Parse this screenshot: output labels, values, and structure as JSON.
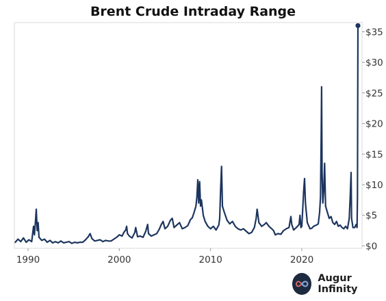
{
  "chart_data": {
    "type": "line",
    "title": "Brent Crude Intraday Range",
    "xlabel": "",
    "ylabel": "",
    "x_range": [
      1988.5,
      2026.6
    ],
    "ylim": [
      -0.4,
      36.5
    ],
    "x_ticks": [
      {
        "value": 1990,
        "label": "1990"
      },
      {
        "value": 2000,
        "label": "2000"
      },
      {
        "value": 2010,
        "label": "2010"
      },
      {
        "value": 2020,
        "label": "2020"
      }
    ],
    "y_ticks": [
      {
        "value": 0,
        "label": "$0"
      },
      {
        "value": 5,
        "label": "$5"
      },
      {
        "value": 10,
        "label": "$10"
      },
      {
        "value": 15,
        "label": "$15"
      },
      {
        "value": 20,
        "label": "$20"
      },
      {
        "value": 25,
        "label": "$25"
      },
      {
        "value": 30,
        "label": "$30"
      },
      {
        "value": 35,
        "label": "$35"
      }
    ],
    "grid": false,
    "y_axis_side": "right",
    "line_color": "#1c355e",
    "series": [
      {
        "name": "",
        "points": [
          [
            1988.6,
            0.6
          ],
          [
            1988.9,
            1.1
          ],
          [
            1989.2,
            0.7
          ],
          [
            1989.5,
            1.3
          ],
          [
            1989.8,
            0.6
          ],
          [
            1990.1,
            1.0
          ],
          [
            1990.4,
            0.7
          ],
          [
            1990.6,
            3.2
          ],
          [
            1990.7,
            1.8
          ],
          [
            1990.8,
            3.8
          ],
          [
            1990.9,
            6.0
          ],
          [
            1991.0,
            2.5
          ],
          [
            1991.1,
            3.8
          ],
          [
            1991.2,
            1.4
          ],
          [
            1991.5,
            0.9
          ],
          [
            1991.8,
            1.1
          ],
          [
            1992.1,
            0.6
          ],
          [
            1992.4,
            0.9
          ],
          [
            1992.7,
            0.5
          ],
          [
            1993.0,
            0.7
          ],
          [
            1993.3,
            0.5
          ],
          [
            1993.6,
            0.8
          ],
          [
            1993.9,
            0.5
          ],
          [
            1994.2,
            0.6
          ],
          [
            1994.5,
            0.7
          ],
          [
            1994.8,
            0.4
          ],
          [
            1995.1,
            0.6
          ],
          [
            1995.4,
            0.5
          ],
          [
            1995.7,
            0.6
          ],
          [
            1996.0,
            0.6
          ],
          [
            1996.3,
            1.0
          ],
          [
            1996.6,
            1.5
          ],
          [
            1996.8,
            2.0
          ],
          [
            1997.0,
            1.2
          ],
          [
            1997.3,
            0.8
          ],
          [
            1997.6,
            0.9
          ],
          [
            1997.9,
            1.0
          ],
          [
            1998.2,
            0.7
          ],
          [
            1998.5,
            0.9
          ],
          [
            1998.8,
            0.8
          ],
          [
            1999.1,
            0.8
          ],
          [
            1999.4,
            1.1
          ],
          [
            1999.7,
            1.4
          ],
          [
            2000.0,
            1.8
          ],
          [
            2000.3,
            1.6
          ],
          [
            2000.5,
            2.2
          ],
          [
            2000.7,
            2.6
          ],
          [
            2000.8,
            3.2
          ],
          [
            2000.9,
            2.0
          ],
          [
            2001.1,
            1.6
          ],
          [
            2001.4,
            1.3
          ],
          [
            2001.7,
            2.2
          ],
          [
            2001.8,
            3.0
          ],
          [
            2002.0,
            1.5
          ],
          [
            2002.3,
            1.6
          ],
          [
            2002.6,
            1.4
          ],
          [
            2002.9,
            2.4
          ],
          [
            2003.1,
            3.5
          ],
          [
            2003.2,
            2.0
          ],
          [
            2003.5,
            1.6
          ],
          [
            2003.8,
            1.8
          ],
          [
            2004.1,
            2.0
          ],
          [
            2004.4,
            2.8
          ],
          [
            2004.6,
            3.5
          ],
          [
            2004.8,
            4.0
          ],
          [
            2005.0,
            2.8
          ],
          [
            2005.3,
            3.2
          ],
          [
            2005.6,
            4.2
          ],
          [
            2005.8,
            4.5
          ],
          [
            2006.0,
            3.0
          ],
          [
            2006.3,
            3.4
          ],
          [
            2006.6,
            3.8
          ],
          [
            2006.9,
            2.8
          ],
          [
            2007.2,
            3.0
          ],
          [
            2007.5,
            3.3
          ],
          [
            2007.8,
            4.3
          ],
          [
            2008.0,
            4.6
          ],
          [
            2008.2,
            5.5
          ],
          [
            2008.4,
            6.5
          ],
          [
            2008.5,
            8.0
          ],
          [
            2008.6,
            10.8
          ],
          [
            2008.7,
            7.0
          ],
          [
            2008.8,
            10.5
          ],
          [
            2008.9,
            6.5
          ],
          [
            2009.0,
            7.5
          ],
          [
            2009.2,
            5.0
          ],
          [
            2009.4,
            4.0
          ],
          [
            2009.7,
            3.2
          ],
          [
            2010.0,
            2.8
          ],
          [
            2010.3,
            3.2
          ],
          [
            2010.6,
            2.6
          ],
          [
            2010.9,
            3.4
          ],
          [
            2011.0,
            4.5
          ],
          [
            2011.1,
            9.0
          ],
          [
            2011.2,
            13.0
          ],
          [
            2011.3,
            6.5
          ],
          [
            2011.5,
            5.5
          ],
          [
            2011.8,
            4.2
          ],
          [
            2012.1,
            3.6
          ],
          [
            2012.4,
            4.0
          ],
          [
            2012.7,
            3.2
          ],
          [
            2013.0,
            2.8
          ],
          [
            2013.3,
            2.6
          ],
          [
            2013.6,
            2.8
          ],
          [
            2013.9,
            2.4
          ],
          [
            2014.2,
            2.0
          ],
          [
            2014.5,
            2.2
          ],
          [
            2014.8,
            3.0
          ],
          [
            2015.0,
            4.5
          ],
          [
            2015.1,
            6.0
          ],
          [
            2015.3,
            3.8
          ],
          [
            2015.6,
            3.2
          ],
          [
            2015.9,
            3.5
          ],
          [
            2016.1,
            3.8
          ],
          [
            2016.4,
            3.2
          ],
          [
            2016.7,
            2.8
          ],
          [
            2016.9,
            2.5
          ],
          [
            2017.1,
            1.8
          ],
          [
            2017.4,
            2.0
          ],
          [
            2017.7,
            1.9
          ],
          [
            2018.0,
            2.5
          ],
          [
            2018.3,
            2.8
          ],
          [
            2018.6,
            3.0
          ],
          [
            2018.8,
            4.8
          ],
          [
            2018.9,
            3.5
          ],
          [
            2019.1,
            2.6
          ],
          [
            2019.4,
            3.0
          ],
          [
            2019.7,
            3.5
          ],
          [
            2019.8,
            5.0
          ],
          [
            2019.9,
            3.0
          ],
          [
            2020.0,
            3.2
          ],
          [
            2020.1,
            6.0
          ],
          [
            2020.2,
            9.0
          ],
          [
            2020.3,
            11.0
          ],
          [
            2020.4,
            7.0
          ],
          [
            2020.6,
            3.8
          ],
          [
            2020.9,
            2.8
          ],
          [
            2021.1,
            2.9
          ],
          [
            2021.3,
            3.2
          ],
          [
            2021.6,
            3.4
          ],
          [
            2021.8,
            3.6
          ],
          [
            2021.95,
            5.5
          ],
          [
            2022.05,
            8.0
          ],
          [
            2022.12,
            18.0
          ],
          [
            2022.17,
            26.0
          ],
          [
            2022.22,
            12.0
          ],
          [
            2022.3,
            7.0
          ],
          [
            2022.4,
            9.0
          ],
          [
            2022.5,
            13.5
          ],
          [
            2022.6,
            6.5
          ],
          [
            2022.8,
            5.5
          ],
          [
            2023.0,
            4.5
          ],
          [
            2023.2,
            4.8
          ],
          [
            2023.4,
            3.8
          ],
          [
            2023.6,
            3.5
          ],
          [
            2023.8,
            4.0
          ],
          [
            2024.0,
            3.2
          ],
          [
            2024.2,
            3.4
          ],
          [
            2024.4,
            3.0
          ],
          [
            2024.6,
            2.8
          ],
          [
            2024.8,
            3.2
          ],
          [
            2025.0,
            2.8
          ],
          [
            2025.2,
            4.5
          ],
          [
            2025.3,
            8.0
          ],
          [
            2025.4,
            12.0
          ],
          [
            2025.45,
            4.5
          ],
          [
            2025.6,
            3.0
          ],
          [
            2025.8,
            3.0
          ],
          [
            2025.95,
            3.5
          ],
          [
            2026.05,
            3.0
          ],
          [
            2026.1,
            8.0
          ],
          [
            2026.15,
            36.0
          ]
        ]
      }
    ]
  },
  "brand": {
    "name": "Augur Infinity",
    "icon": "infinity-icon",
    "logo_bg": "#1c2b3f"
  }
}
